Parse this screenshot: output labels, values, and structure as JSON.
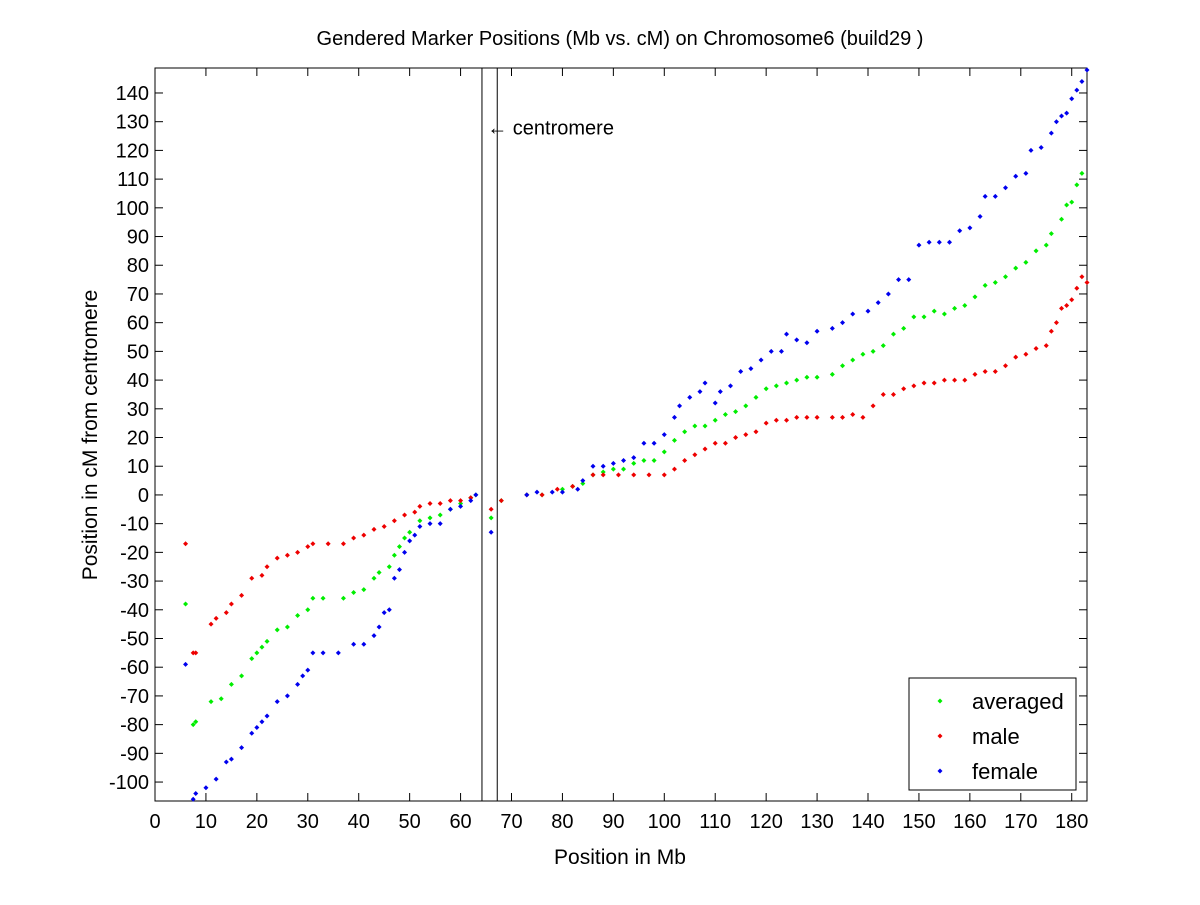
{
  "chart_data": {
    "type": "scatter",
    "title": "Gendered Marker Positions (Mb vs. cM) on Chromosome6 (build29 )",
    "xlabel": "Position in Mb",
    "ylabel": "Position in cM from centromere",
    "xlim": [
      0,
      183
    ],
    "ylim": [
      -106.6,
      148.7
    ],
    "xticks": [
      0,
      10,
      20,
      30,
      40,
      50,
      60,
      70,
      80,
      90,
      100,
      110,
      120,
      130,
      140,
      150,
      160,
      170,
      180
    ],
    "yticks": [
      -100,
      -90,
      -80,
      -70,
      -60,
      -50,
      -40,
      -30,
      -20,
      -10,
      0,
      10,
      20,
      30,
      40,
      50,
      60,
      70,
      80,
      90,
      100,
      110,
      120,
      130,
      140
    ],
    "grid": false,
    "legend_position": "bottom-right",
    "centromere": {
      "label": "← centromere",
      "lines_mb": [
        64.2,
        67.2
      ],
      "label_cm": 128
    },
    "series": [
      {
        "name": "averaged",
        "color": "#00ee00",
        "points": [
          [
            6,
            -38
          ],
          [
            7.5,
            -80
          ],
          [
            8,
            -79
          ],
          [
            11,
            -72
          ],
          [
            13,
            -71
          ],
          [
            15,
            -66
          ],
          [
            17,
            -63
          ],
          [
            19,
            -57
          ],
          [
            20,
            -55
          ],
          [
            21,
            -53
          ],
          [
            22,
            -51
          ],
          [
            24,
            -47
          ],
          [
            26,
            -46
          ],
          [
            28,
            -42
          ],
          [
            30,
            -40
          ],
          [
            31,
            -36
          ],
          [
            33,
            -36
          ],
          [
            37,
            -36
          ],
          [
            39,
            -34
          ],
          [
            41,
            -33
          ],
          [
            43,
            -29
          ],
          [
            44,
            -27
          ],
          [
            46,
            -25
          ],
          [
            47,
            -21
          ],
          [
            48,
            -18
          ],
          [
            49,
            -15
          ],
          [
            50,
            -13
          ],
          [
            52,
            -9
          ],
          [
            54,
            -8
          ],
          [
            56,
            -7
          ],
          [
            58,
            -5
          ],
          [
            60,
            -3
          ],
          [
            62,
            -1
          ],
          [
            63,
            0
          ],
          [
            66,
            -8
          ],
          [
            68,
            -2
          ],
          [
            73,
            0
          ],
          [
            76,
            0
          ],
          [
            80,
            2
          ],
          [
            82,
            3
          ],
          [
            84,
            4
          ],
          [
            86,
            7
          ],
          [
            88,
            8
          ],
          [
            90,
            9
          ],
          [
            92,
            9
          ],
          [
            94,
            11
          ],
          [
            96,
            12
          ],
          [
            98,
            12
          ],
          [
            100,
            15
          ],
          [
            102,
            19
          ],
          [
            104,
            22
          ],
          [
            106,
            24
          ],
          [
            108,
            24
          ],
          [
            110,
            26
          ],
          [
            112,
            28
          ],
          [
            114,
            29
          ],
          [
            116,
            31
          ],
          [
            118,
            34
          ],
          [
            120,
            37
          ],
          [
            122,
            38
          ],
          [
            124,
            39
          ],
          [
            126,
            40
          ],
          [
            128,
            41
          ],
          [
            130,
            41
          ],
          [
            133,
            42
          ],
          [
            135,
            45
          ],
          [
            137,
            47
          ],
          [
            139,
            49
          ],
          [
            141,
            50
          ],
          [
            143,
            52
          ],
          [
            145,
            56
          ],
          [
            147,
            58
          ],
          [
            149,
            62
          ],
          [
            151,
            62
          ],
          [
            153,
            64
          ],
          [
            155,
            63
          ],
          [
            157,
            65
          ],
          [
            159,
            66
          ],
          [
            161,
            69
          ],
          [
            163,
            73
          ],
          [
            165,
            74
          ],
          [
            167,
            76
          ],
          [
            169,
            79
          ],
          [
            171,
            81
          ],
          [
            173,
            85
          ],
          [
            175,
            87
          ],
          [
            176,
            91
          ],
          [
            178,
            96
          ],
          [
            179,
            101
          ],
          [
            180,
            102
          ],
          [
            181,
            108
          ],
          [
            182,
            112
          ]
        ]
      },
      {
        "name": "male",
        "color": "#ee0000",
        "points": [
          [
            6,
            -17
          ],
          [
            7.5,
            -55
          ],
          [
            8,
            -55
          ],
          [
            11,
            -45
          ],
          [
            12,
            -43
          ],
          [
            14,
            -41
          ],
          [
            15,
            -38
          ],
          [
            17,
            -35
          ],
          [
            19,
            -29
          ],
          [
            21,
            -28
          ],
          [
            22,
            -25
          ],
          [
            24,
            -22
          ],
          [
            26,
            -21
          ],
          [
            28,
            -20
          ],
          [
            30,
            -18
          ],
          [
            31,
            -17
          ],
          [
            34,
            -17
          ],
          [
            37,
            -17
          ],
          [
            39,
            -15
          ],
          [
            41,
            -14
          ],
          [
            43,
            -12
          ],
          [
            45,
            -11
          ],
          [
            47,
            -9
          ],
          [
            49,
            -7
          ],
          [
            51,
            -6
          ],
          [
            52,
            -4
          ],
          [
            54,
            -3
          ],
          [
            56,
            -3
          ],
          [
            58,
            -2
          ],
          [
            60,
            -2
          ],
          [
            62,
            -1
          ],
          [
            66,
            -5
          ],
          [
            68,
            -2
          ],
          [
            73,
            0
          ],
          [
            76,
            0
          ],
          [
            79,
            2
          ],
          [
            82,
            3
          ],
          [
            86,
            7
          ],
          [
            88,
            7
          ],
          [
            91,
            7
          ],
          [
            94,
            7
          ],
          [
            97,
            7
          ],
          [
            100,
            7
          ],
          [
            102,
            9
          ],
          [
            104,
            12
          ],
          [
            106,
            14
          ],
          [
            108,
            16
          ],
          [
            110,
            18
          ],
          [
            112,
            18
          ],
          [
            114,
            20
          ],
          [
            116,
            21
          ],
          [
            118,
            22
          ],
          [
            120,
            25
          ],
          [
            122,
            26
          ],
          [
            124,
            26
          ],
          [
            126,
            27
          ],
          [
            128,
            27
          ],
          [
            130,
            27
          ],
          [
            133,
            27
          ],
          [
            135,
            27
          ],
          [
            137,
            28
          ],
          [
            139,
            27
          ],
          [
            141,
            31
          ],
          [
            143,
            35
          ],
          [
            145,
            35
          ],
          [
            147,
            37
          ],
          [
            149,
            38
          ],
          [
            151,
            39
          ],
          [
            153,
            39
          ],
          [
            155,
            40
          ],
          [
            157,
            40
          ],
          [
            159,
            40
          ],
          [
            161,
            42
          ],
          [
            163,
            43
          ],
          [
            165,
            43
          ],
          [
            167,
            45
          ],
          [
            169,
            48
          ],
          [
            171,
            49
          ],
          [
            173,
            51
          ],
          [
            175,
            52
          ],
          [
            176,
            57
          ],
          [
            177,
            60
          ],
          [
            178,
            65
          ],
          [
            179,
            66
          ],
          [
            180,
            68
          ],
          [
            181,
            72
          ],
          [
            182,
            76
          ],
          [
            183,
            74
          ]
        ]
      },
      {
        "name": "female",
        "color": "#0000ee",
        "points": [
          [
            6,
            -59
          ],
          [
            7.5,
            -106
          ],
          [
            8,
            -104
          ],
          [
            10,
            -102
          ],
          [
            12,
            -99
          ],
          [
            14,
            -93
          ],
          [
            15,
            -92
          ],
          [
            17,
            -88
          ],
          [
            19,
            -83
          ],
          [
            20,
            -81
          ],
          [
            21,
            -79
          ],
          [
            22,
            -77
          ],
          [
            24,
            -72
          ],
          [
            26,
            -70
          ],
          [
            28,
            -66
          ],
          [
            29,
            -63
          ],
          [
            30,
            -61
          ],
          [
            31,
            -55
          ],
          [
            33,
            -55
          ],
          [
            36,
            -55
          ],
          [
            39,
            -52
          ],
          [
            41,
            -52
          ],
          [
            43,
            -49
          ],
          [
            44,
            -46
          ],
          [
            45,
            -41
          ],
          [
            46,
            -40
          ],
          [
            47,
            -29
          ],
          [
            48,
            -26
          ],
          [
            49,
            -20
          ],
          [
            50,
            -16
          ],
          [
            51,
            -14
          ],
          [
            52,
            -11
          ],
          [
            54,
            -10
          ],
          [
            56,
            -10
          ],
          [
            58,
            -5
          ],
          [
            60,
            -4
          ],
          [
            62,
            -2
          ],
          [
            63,
            0
          ],
          [
            66,
            -13
          ],
          [
            73,
            0
          ],
          [
            75,
            1
          ],
          [
            78,
            1
          ],
          [
            80,
            1
          ],
          [
            83,
            2
          ],
          [
            84,
            5
          ],
          [
            86,
            10
          ],
          [
            88,
            10
          ],
          [
            90,
            11
          ],
          [
            92,
            12
          ],
          [
            94,
            13
          ],
          [
            96,
            18
          ],
          [
            98,
            18
          ],
          [
            100,
            21
          ],
          [
            102,
            27
          ],
          [
            103,
            31
          ],
          [
            105,
            34
          ],
          [
            107,
            36
          ],
          [
            108,
            39
          ],
          [
            110,
            32
          ],
          [
            111,
            36
          ],
          [
            113,
            38
          ],
          [
            115,
            43
          ],
          [
            117,
            44
          ],
          [
            119,
            47
          ],
          [
            121,
            50
          ],
          [
            123,
            50
          ],
          [
            124,
            56
          ],
          [
            126,
            54
          ],
          [
            128,
            53
          ],
          [
            130,
            57
          ],
          [
            133,
            58
          ],
          [
            135,
            60
          ],
          [
            137,
            63
          ],
          [
            140,
            64
          ],
          [
            142,
            67
          ],
          [
            144,
            70
          ],
          [
            146,
            75
          ],
          [
            148,
            75
          ],
          [
            150,
            87
          ],
          [
            152,
            88
          ],
          [
            154,
            88
          ],
          [
            156,
            88
          ],
          [
            158,
            92
          ],
          [
            160,
            93
          ],
          [
            162,
            97
          ],
          [
            163,
            104
          ],
          [
            165,
            104
          ],
          [
            167,
            107
          ],
          [
            169,
            111
          ],
          [
            171,
            112
          ],
          [
            172,
            120
          ],
          [
            174,
            121
          ],
          [
            176,
            126
          ],
          [
            177,
            130
          ],
          [
            178,
            132
          ],
          [
            179,
            133
          ],
          [
            180,
            138
          ],
          [
            181,
            141
          ],
          [
            182,
            144
          ],
          [
            183,
            148
          ]
        ]
      }
    ]
  }
}
